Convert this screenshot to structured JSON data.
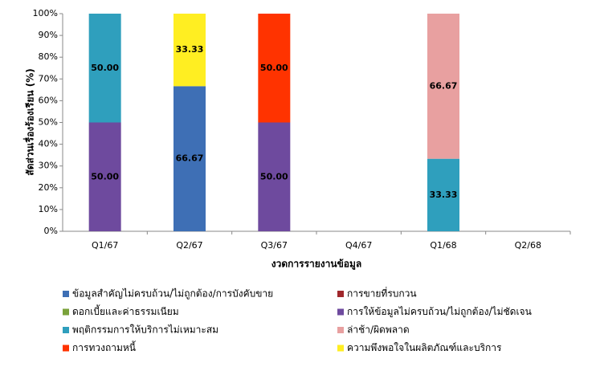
{
  "chart_data": {
    "type": "stacked_bar_100",
    "x_label": "งวดการรายงานข้อมูล",
    "y_label": "สัดส่วนเรื่องร้องเรียน (%)",
    "categories": [
      "Q1/67",
      "Q2/67",
      "Q3/67",
      "Q4/67",
      "Q1/68",
      "Q2/68"
    ],
    "ylim": [
      0,
      100
    ],
    "yticks": [
      {
        "value": 0,
        "label": "0%"
      },
      {
        "value": 10,
        "label": "10%"
      },
      {
        "value": 20,
        "label": "20%"
      },
      {
        "value": 30,
        "label": "30%"
      },
      {
        "value": 40,
        "label": "40%"
      },
      {
        "value": 50,
        "label": "50%"
      },
      {
        "value": 60,
        "label": "60%"
      },
      {
        "value": 70,
        "label": "70%"
      },
      {
        "value": 80,
        "label": "80%"
      },
      {
        "value": 90,
        "label": "90%"
      },
      {
        "value": 100,
        "label": "100%"
      }
    ],
    "series": [
      {
        "name": "ข้อมูลสำคัญไม่ครบถ้วน/ไม่ถูกต้อง/การบังคับขาย",
        "color": "#3e6fb5",
        "values": [
          null,
          66.67,
          null,
          null,
          null,
          null
        ],
        "value_labels": [
          null,
          "66.67",
          null,
          null,
          null,
          null
        ]
      },
      {
        "name": "การขายที่รบกวน",
        "color": "#a0282c",
        "values": [
          null,
          null,
          null,
          null,
          null,
          null
        ]
      },
      {
        "name": "ดอกเบี้ยและค่าธรรมเนียม",
        "color": "#7aa23a",
        "values": [
          null,
          null,
          null,
          null,
          null,
          null
        ]
      },
      {
        "name": "การให้ข้อมูลไม่ครบถ้วน/ไม่ถูกต้อง/ไม่ชัดเจน",
        "color": "#6e4a9e",
        "values": [
          50,
          null,
          50,
          null,
          null,
          null
        ],
        "value_labels": [
          "50.00",
          null,
          "50.00",
          null,
          null,
          null
        ]
      },
      {
        "name": "พฤติกรรมการให้บริการไม่เหมาะสม",
        "color": "#2f9fbd",
        "values": [
          50,
          null,
          null,
          null,
          33.33,
          null
        ],
        "value_labels": [
          "50.00",
          null,
          null,
          null,
          "33.33",
          null
        ]
      },
      {
        "name": "ล่าช้า/ผิดพลาด",
        "color": "#e8a0a0",
        "values": [
          null,
          null,
          null,
          null,
          66.67,
          null
        ],
        "value_labels": [
          null,
          null,
          null,
          null,
          "66.67",
          null
        ]
      },
      {
        "name": "การทวงถามหนี้",
        "color": "#ff3300",
        "values": [
          null,
          null,
          50,
          null,
          null,
          null
        ],
        "value_labels": [
          null,
          null,
          "50.00",
          null,
          null,
          null
        ]
      },
      {
        "name": "ความพึงพอใจในผลิตภัณฑ์และบริการ",
        "color": "#ffee22",
        "values": [
          null,
          33.33,
          null,
          null,
          null,
          null
        ],
        "value_labels": [
          null,
          "33.33",
          null,
          null,
          null,
          null
        ]
      }
    ]
  }
}
